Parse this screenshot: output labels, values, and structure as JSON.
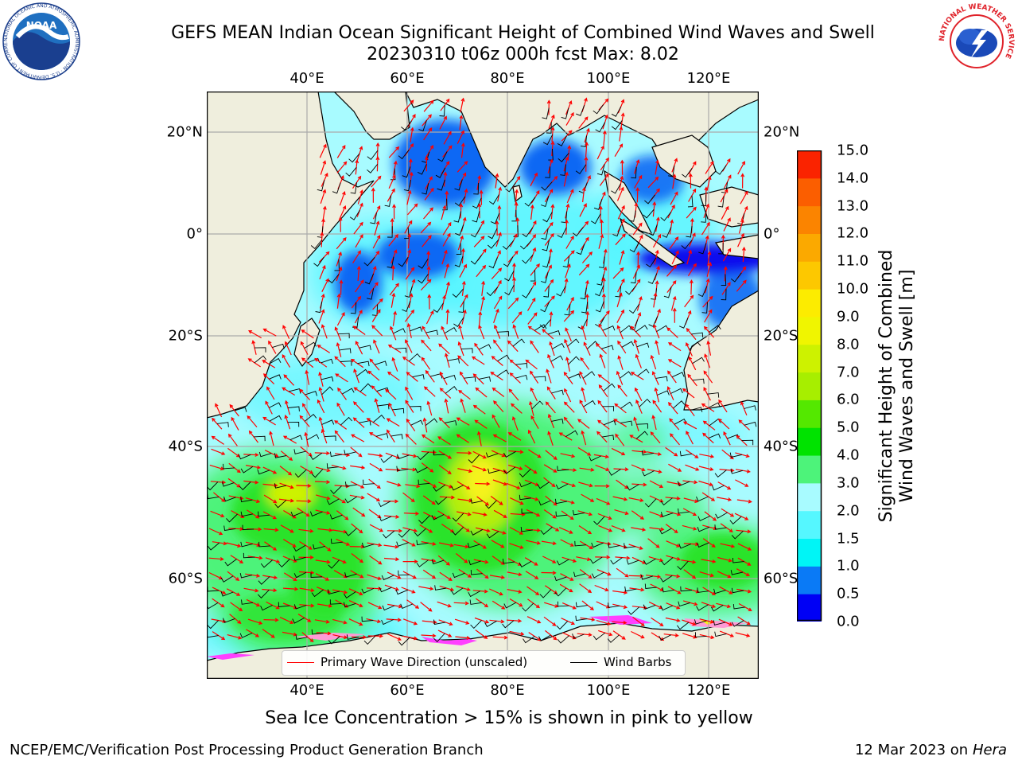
{
  "header": {
    "title_line1": "GEFS MEAN Indian Ocean Significant Height of Combined Wind Waves and Swell",
    "title_line2": "20230310 t06z 000h fcst   Max: 8.02"
  },
  "map": {
    "lon_labels": [
      "40°E",
      "60°E",
      "80°E",
      "100°E",
      "120°E"
    ],
    "lon_values": [
      40,
      60,
      80,
      100,
      120
    ],
    "lat_labels": [
      "20°N",
      "0°",
      "20°S",
      "40°S",
      "60°S"
    ],
    "lat_values": [
      20,
      0,
      -20,
      -40,
      -60
    ],
    "extent": {
      "lon_min": 20,
      "lon_max": 130,
      "lat_min": -70,
      "lat_max": 28
    },
    "colors": {
      "land": "#efeedd",
      "ocean_light": "#a8fbff",
      "cyan": "#55f5ff",
      "blue": "#0a68f4",
      "deep_blue": "#0a10ee",
      "green": "#4df37a",
      "lime": "#29e32a",
      "yellow": "#f5f21c",
      "grid": "#aaaaaa"
    }
  },
  "legend": {
    "items": [
      {
        "label": "Primary Wave Direction (unscaled)",
        "color": "#ff0000"
      },
      {
        "label": "Wind Barbs",
        "color": "#000000"
      }
    ]
  },
  "colorbar": {
    "label_line1": "Significant Height of Combined",
    "label_line2": "Wind Waves and Swell [m]",
    "ticks": [
      "0.0",
      "0.5",
      "1.0",
      "1.5",
      "2.0",
      "3.0",
      "4.0",
      "5.0",
      "6.0",
      "7.0",
      "8.0",
      "9.0",
      "10.0",
      "11.0",
      "12.0",
      "13.0",
      "14.0",
      "15.0"
    ],
    "colors": [
      "#0000f5",
      "#0a7af6",
      "#00f5f6",
      "#55f7ff",
      "#a8fbff",
      "#4df37a",
      "#00e300",
      "#54e800",
      "#a7ee00",
      "#cdf200",
      "#f0f500",
      "#fcec00",
      "#fdc800",
      "#fba900",
      "#fb8400",
      "#fb5e00",
      "#fa2300"
    ]
  },
  "caption": "Sea Ice Concentration > 15% is shown in pink to yellow",
  "footer": {
    "left": "NCEP/EMC/Verification Post Processing Product Generation Branch",
    "right_date": "12 Mar 2023 on",
    "right_host": "Hera"
  },
  "logos": {
    "noaa_text": "NOAA",
    "noaa_ring": "NATIONAL OCEANIC AND ATMOSPHERIC ADMINISTRATION · U.S. DEPARTMENT OF COMMERCE",
    "nws_ring": "NATIONAL WEATHER SERVICE"
  }
}
